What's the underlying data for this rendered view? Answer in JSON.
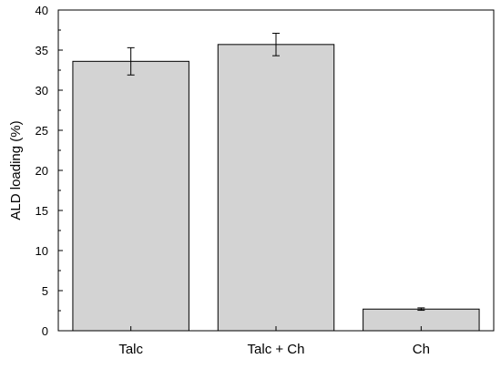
{
  "chart_data": {
    "type": "bar",
    "title": "",
    "xlabel": "",
    "ylabel": "ALD loading (%)",
    "categories": [
      "Talc",
      "Talc + Ch",
      "Ch"
    ],
    "values": [
      33.6,
      35.7,
      2.7
    ],
    "errors": [
      1.7,
      1.4,
      0.15
    ],
    "ylim": [
      0,
      40
    ],
    "yticks": [
      0,
      5,
      10,
      15,
      20,
      25,
      30,
      35,
      40
    ],
    "grid": false,
    "legend": "none",
    "colors": {
      "bar_fill": "#d3d3d3",
      "bar_stroke": "#000000",
      "axis": "#000000"
    }
  }
}
